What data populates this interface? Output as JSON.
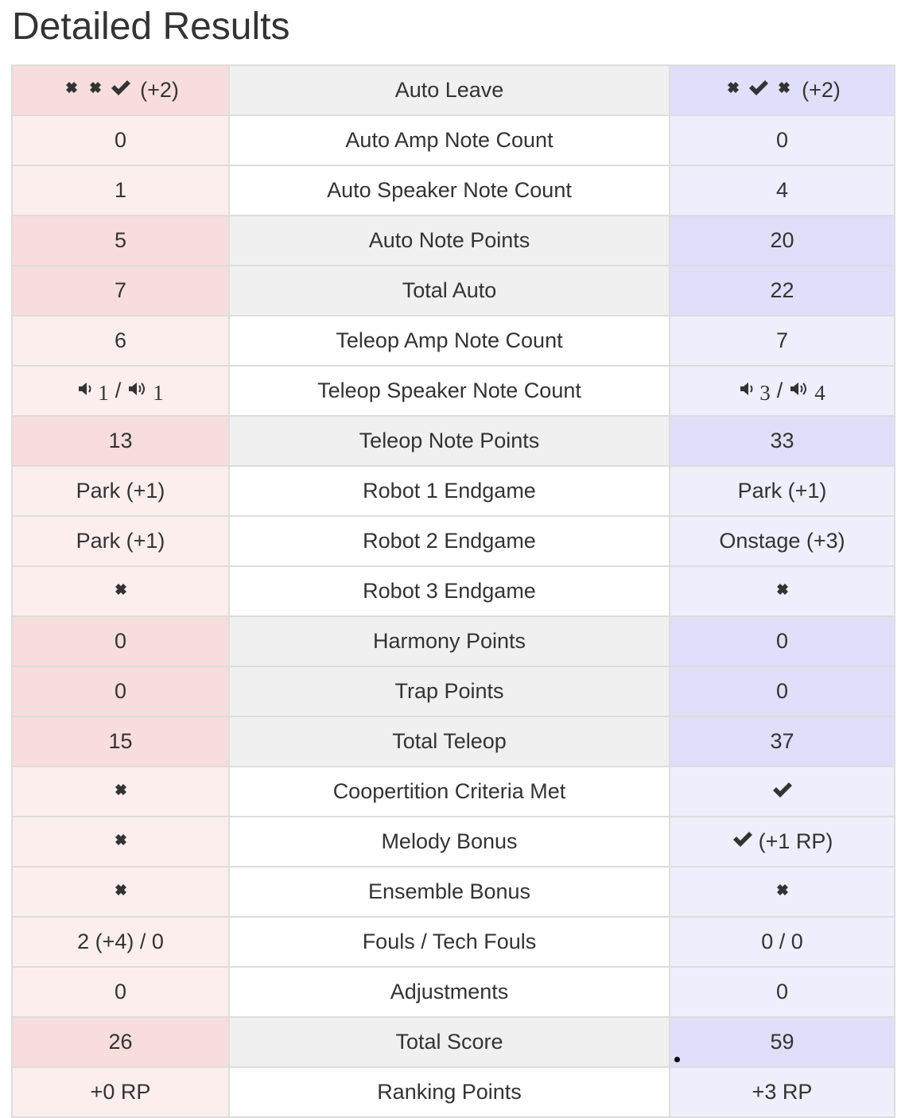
{
  "page": {
    "title": "Detailed Results"
  },
  "colors": {
    "red_light": "#fdeeee",
    "red_key": "#f8dddd",
    "blue_light": "#eeeefd",
    "blue_key": "#dfdffa",
    "label_key": "#f0f0f0",
    "border": "#dddddd",
    "text": "#333333"
  },
  "rows": {
    "auto_leave": {
      "label": "Auto Leave",
      "red_marks": [
        "cross",
        "cross",
        "check"
      ],
      "red_suffix": "(+2)",
      "blue_marks": [
        "cross",
        "check",
        "cross"
      ],
      "blue_suffix": "(+2)"
    },
    "auto_amp_note_count": {
      "label": "Auto Amp Note Count",
      "red": "0",
      "blue": "0"
    },
    "auto_speaker_note_count": {
      "label": "Auto Speaker Note Count",
      "red": "1",
      "blue": "4"
    },
    "auto_note_points": {
      "label": "Auto Note Points",
      "red": "5",
      "blue": "20"
    },
    "total_auto": {
      "label": "Total Auto",
      "red": "7",
      "blue": "22"
    },
    "teleop_amp_note_count": {
      "label": "Teleop Amp Note Count",
      "red": "6",
      "blue": "7"
    },
    "teleop_speaker_note_count": {
      "label": "Teleop Speaker Note Count",
      "red_unamplified": "1",
      "red_amplified": "1",
      "blue_unamplified": "3",
      "blue_amplified": "4",
      "separator": "/",
      "unamplified_icon": "speaker-icon",
      "amplified_icon": "speaker-amplified-icon"
    },
    "teleop_note_points": {
      "label": "Teleop Note Points",
      "red": "13",
      "blue": "33"
    },
    "robot_1_endgame": {
      "label": "Robot 1 Endgame",
      "red": "Park (+1)",
      "blue": "Park (+1)"
    },
    "robot_2_endgame": {
      "label": "Robot 2 Endgame",
      "red": "Park (+1)",
      "blue": "Onstage (+3)"
    },
    "robot_3_endgame": {
      "label": "Robot 3 Endgame",
      "red_mark": "cross",
      "blue_mark": "cross"
    },
    "harmony_points": {
      "label": "Harmony Points",
      "red": "0",
      "blue": "0"
    },
    "trap_points": {
      "label": "Trap Points",
      "red": "0",
      "blue": "0"
    },
    "total_teleop": {
      "label": "Total Teleop",
      "red": "15",
      "blue": "37"
    },
    "coopertition_criteria_met": {
      "label": "Coopertition Criteria Met",
      "red_mark": "cross",
      "blue_mark": "check"
    },
    "melody_bonus": {
      "label": "Melody Bonus",
      "red_mark": "cross",
      "blue_mark": "check",
      "blue_suffix": "(+1 RP)"
    },
    "ensemble_bonus": {
      "label": "Ensemble Bonus",
      "red_mark": "cross",
      "blue_mark": "cross"
    },
    "fouls_tech_fouls": {
      "label": "Fouls / Tech Fouls",
      "red": "2 (+4) / 0",
      "blue": "0 / 0"
    },
    "adjustments": {
      "label": "Adjustments",
      "red": "0",
      "blue": "0"
    },
    "total_score": {
      "label": "Total Score",
      "red": "26",
      "blue": "59"
    },
    "ranking_points": {
      "label": "Ranking Points",
      "red": "+0 RP",
      "blue": "+3 RP"
    }
  }
}
